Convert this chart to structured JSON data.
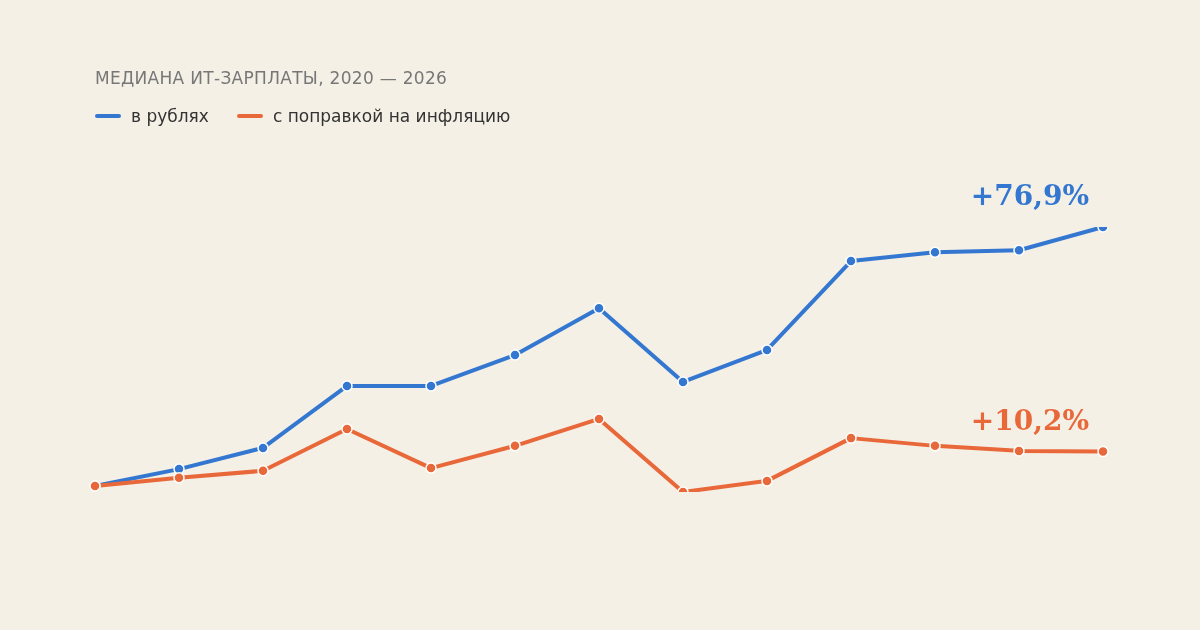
{
  "chart_data": {
    "type": "line",
    "title": "МЕДИАНА ИТ-ЗАРПЛАТЫ, 2020 — 2026",
    "categories": [
      null,
      null,
      null,
      null,
      null,
      null,
      null,
      null,
      null,
      null,
      null,
      null,
      null
    ],
    "series": [
      {
        "name": "в рублях",
        "color": "#3377d1",
        "values": [
          0,
          5.0,
          11.3,
          29.7,
          29.7,
          38.9,
          52.8,
          30.9,
          40.4,
          66.8,
          69.4,
          70.0,
          76.9
        ],
        "value_labels": [
          null,
          null,
          null,
          null,
          null,
          null,
          null,
          null,
          null,
          null,
          null,
          null,
          "+76,9%"
        ]
      },
      {
        "name": "с поправкой на инфляцию",
        "color": "#e8683a",
        "values": [
          0,
          2.4,
          4.5,
          16.9,
          5.3,
          11.9,
          19.9,
          -1.8,
          1.5,
          14.2,
          11.9,
          10.4,
          10.2
        ],
        "value_labels": [
          null,
          null,
          null,
          null,
          null,
          null,
          null,
          null,
          null,
          null,
          null,
          null,
          "+10,2%"
        ]
      }
    ],
    "legend": "top left",
    "marker": "circle",
    "line_style": "solid"
  }
}
